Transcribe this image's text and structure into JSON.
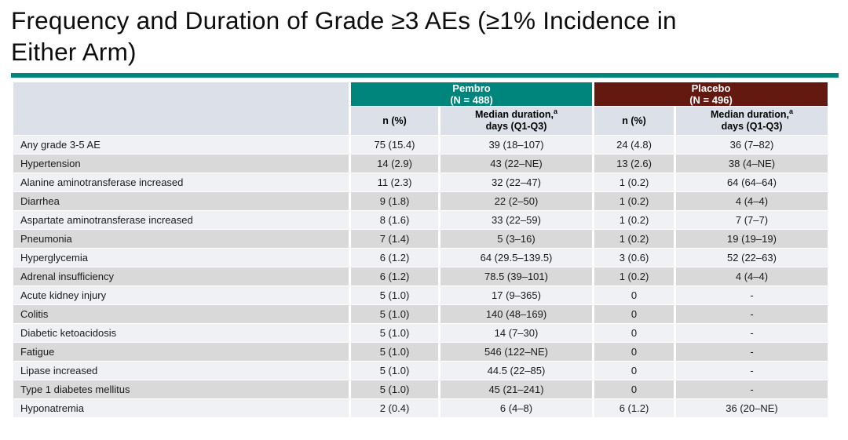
{
  "slide": {
    "title_lines": [
      "Frequency and Duration of Grade ≥3 AEs (≥1% Incidence in",
      "Either Arm)"
    ]
  },
  "table": {
    "arms": [
      {
        "label": "Pembro",
        "n_label": "(N = 488)"
      },
      {
        "label": "Placebo",
        "n_label": "(N = 496)"
      }
    ],
    "columns": {
      "n_pct": "n (%)",
      "duration_main": "Median duration,",
      "duration_sup": "a",
      "duration_sub": "days (Q1-Q3)"
    },
    "rows": [
      {
        "name": "Any grade 3-5 AE",
        "pembro_n": "75 (15.4)",
        "pembro_dur": "39 (18–107)",
        "placebo_n": "24 (4.8)",
        "placebo_dur": "36 (7–82)"
      },
      {
        "name": "Hypertension",
        "pembro_n": "14 (2.9)",
        "pembro_dur": "43 (22–NE)",
        "placebo_n": "13 (2.6)",
        "placebo_dur": "38 (4–NE)"
      },
      {
        "name": "Alanine aminotransferase increased",
        "pembro_n": "11 (2.3)",
        "pembro_dur": "32 (22–47)",
        "placebo_n": "1 (0.2)",
        "placebo_dur": "64 (64–64)"
      },
      {
        "name": "Diarrhea",
        "pembro_n": "9 (1.8)",
        "pembro_dur": "22 (2–50)",
        "placebo_n": "1 (0.2)",
        "placebo_dur": "4 (4–4)"
      },
      {
        "name": "Aspartate aminotransferase increased",
        "pembro_n": "8 (1.6)",
        "pembro_dur": "33 (22–59)",
        "placebo_n": "1 (0.2)",
        "placebo_dur": "7 (7–7)"
      },
      {
        "name": "Pneumonia",
        "pembro_n": "7 (1.4)",
        "pembro_dur": "5 (3–16)",
        "placebo_n": "1 (0.2)",
        "placebo_dur": "19 (19–19)"
      },
      {
        "name": "Hyperglycemia",
        "pembro_n": "6 (1.2)",
        "pembro_dur": "64 (29.5–139.5)",
        "placebo_n": "3 (0.6)",
        "placebo_dur": "52 (22–63)"
      },
      {
        "name": "Adrenal insufficiency",
        "pembro_n": "6 (1.2)",
        "pembro_dur": "78.5 (39–101)",
        "placebo_n": "1 (0.2)",
        "placebo_dur": "4 (4–4)"
      },
      {
        "name": "Acute kidney injury",
        "pembro_n": "5 (1.0)",
        "pembro_dur": "17 (9–365)",
        "placebo_n": "0",
        "placebo_dur": "-"
      },
      {
        "name": "Colitis",
        "pembro_n": "5 (1.0)",
        "pembro_dur": "140 (48–169)",
        "placebo_n": "0",
        "placebo_dur": "-"
      },
      {
        "name": "Diabetic ketoacidosis",
        "pembro_n": "5 (1.0)",
        "pembro_dur": "14 (7–30)",
        "placebo_n": "0",
        "placebo_dur": "-"
      },
      {
        "name": "Fatigue",
        "pembro_n": "5 (1.0)",
        "pembro_dur": "546 (122–NE)",
        "placebo_n": "0",
        "placebo_dur": "-"
      },
      {
        "name": "Lipase increased",
        "pembro_n": "5 (1.0)",
        "pembro_dur": "44.5 (22–85)",
        "placebo_n": "0",
        "placebo_dur": "-"
      },
      {
        "name": "Type 1 diabetes mellitus",
        "pembro_n": "5 (1.0)",
        "pembro_dur": "45 (21–241)",
        "placebo_n": "0",
        "placebo_dur": "-"
      },
      {
        "name": "Hyponatremia",
        "pembro_n": "2 (0.4)",
        "pembro_dur": "6 (4–8)",
        "placebo_n": "6 (1.2)",
        "placebo_dur": "36 (20–NE)"
      }
    ]
  },
  "colors": {
    "pembro_header": "#00857C",
    "placebo_header": "#641910",
    "subheader_bg": "#DCE0E9",
    "row_light": "#F0F1F5",
    "row_dark": "#D9D9D9",
    "title_rule": "#00857C"
  }
}
